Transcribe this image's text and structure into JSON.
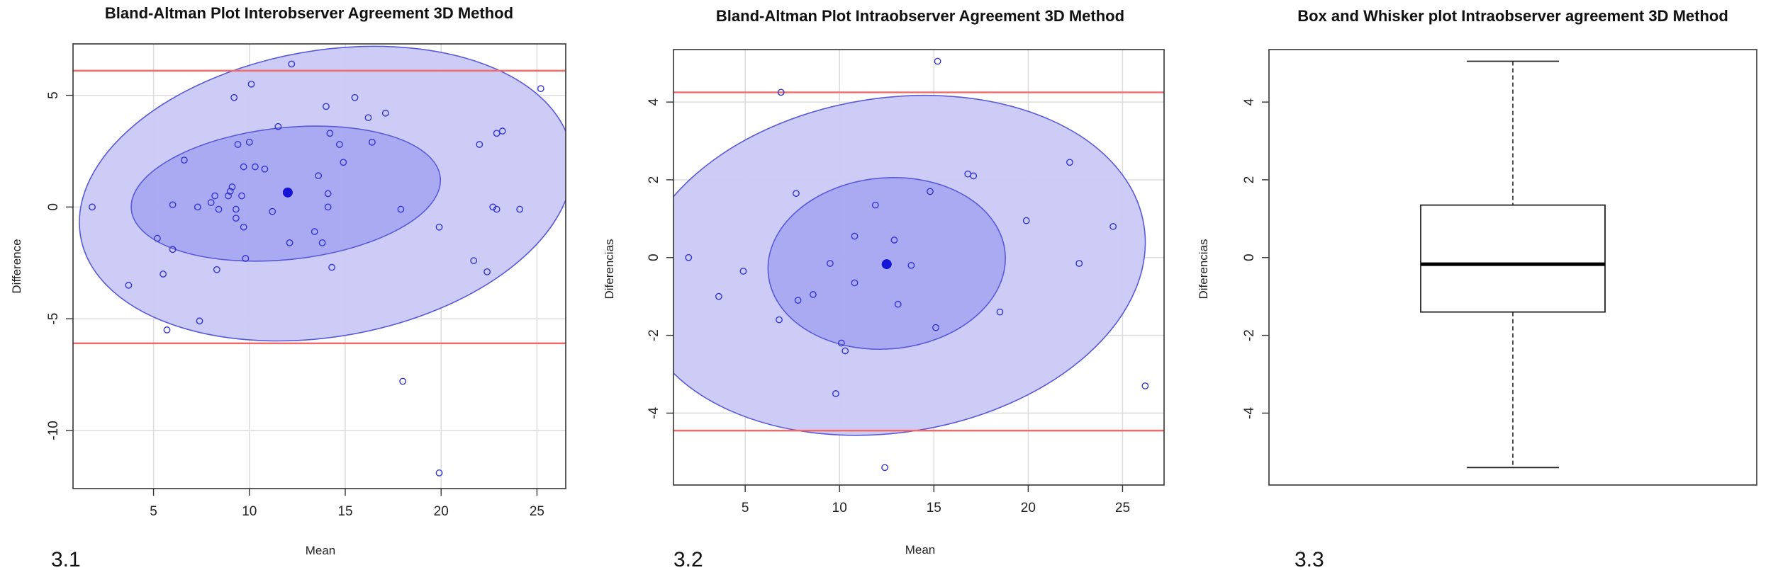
{
  "colors": {
    "ellipse_outer": "#c9c9f7",
    "ellipse_inner": "#a3a3f2",
    "ellipse_stroke": "#5a5ad8",
    "points": "#3535d0",
    "limit_lines": "#f06a6a",
    "grid": "#dcdcdc"
  },
  "chart_data": [
    {
      "type": "scatter",
      "panel_label": "3.1",
      "title": "Bland-Altman Plot Interobserver Agreement 3D Method",
      "xlabel": "Mean",
      "ylabel": "Difference",
      "xlim": [
        0.8,
        26.5
      ],
      "ylim": [
        -12.6,
        7.3
      ],
      "xticks": [
        5,
        10,
        15,
        20,
        25
      ],
      "yticks": [
        -10,
        -5,
        0,
        5
      ],
      "grid": true,
      "limit_lines": [
        6.1,
        -6.1
      ],
      "mean_point": [
        12.0,
        0.65
      ],
      "ellipses": [
        {
          "cx": 14.0,
          "cy": 0.6,
          "rx": 13.0,
          "ry": 6.4,
          "angle": 10,
          "fill": "outer"
        },
        {
          "cx": 11.9,
          "cy": 0.6,
          "rx": 8.1,
          "ry": 2.95,
          "angle": 6,
          "fill": "inner"
        }
      ],
      "points": [
        [
          1.8,
          0.0
        ],
        [
          3.7,
          -3.5
        ],
        [
          5.2,
          -1.4
        ],
        [
          5.5,
          -3.0
        ],
        [
          5.7,
          -5.5
        ],
        [
          6.0,
          0.1
        ],
        [
          6.0,
          -1.9
        ],
        [
          6.6,
          2.1
        ],
        [
          7.3,
          0.0
        ],
        [
          7.4,
          -5.1
        ],
        [
          8.0,
          0.2
        ],
        [
          8.2,
          0.5
        ],
        [
          8.3,
          -2.8
        ],
        [
          8.4,
          -0.1
        ],
        [
          8.9,
          0.5
        ],
        [
          9.0,
          0.7
        ],
        [
          9.1,
          0.9
        ],
        [
          9.2,
          4.9
        ],
        [
          9.3,
          -0.1
        ],
        [
          9.3,
          -0.5
        ],
        [
          9.4,
          2.8
        ],
        [
          9.6,
          0.5
        ],
        [
          9.7,
          1.8
        ],
        [
          9.7,
          -0.9
        ],
        [
          9.8,
          -2.3
        ],
        [
          10.0,
          2.9
        ],
        [
          10.1,
          5.5
        ],
        [
          10.3,
          1.8
        ],
        [
          10.8,
          1.7
        ],
        [
          11.2,
          -0.2
        ],
        [
          11.5,
          3.6
        ],
        [
          12.1,
          -1.6
        ],
        [
          12.2,
          6.4
        ],
        [
          13.4,
          -1.1
        ],
        [
          13.6,
          1.4
        ],
        [
          13.8,
          -1.6
        ],
        [
          14.0,
          4.5
        ],
        [
          14.1,
          0.0
        ],
        [
          14.1,
          0.6
        ],
        [
          14.2,
          3.3
        ],
        [
          14.3,
          -2.7
        ],
        [
          14.7,
          2.8
        ],
        [
          14.9,
          2.0
        ],
        [
          15.5,
          4.9
        ],
        [
          16.2,
          4.0
        ],
        [
          16.4,
          2.9
        ],
        [
          17.1,
          4.2
        ],
        [
          17.9,
          -0.1
        ],
        [
          18.0,
          -7.8
        ],
        [
          19.9,
          -0.9
        ],
        [
          19.9,
          -11.9
        ],
        [
          21.7,
          -2.4
        ],
        [
          22.0,
          2.8
        ],
        [
          22.4,
          -2.9
        ],
        [
          22.7,
          0.0
        ],
        [
          22.9,
          3.3
        ],
        [
          22.9,
          -0.1
        ],
        [
          23.2,
          3.4
        ],
        [
          24.1,
          -0.1
        ],
        [
          25.2,
          5.3
        ]
      ]
    },
    {
      "type": "scatter",
      "panel_label": "3.2",
      "title": "Bland-Altman Plot Intraobserver Agreement 3D Method",
      "xlabel": "Mean",
      "ylabel": "Diferencias",
      "xlim": [
        1.2,
        27.2
      ],
      "ylim": [
        -5.85,
        5.35
      ],
      "xticks": [
        5,
        10,
        15,
        20,
        25
      ],
      "yticks": [
        -4,
        -2,
        0,
        2,
        4
      ],
      "grid": true,
      "limit_lines": [
        4.25,
        -4.45
      ],
      "mean_point": [
        12.5,
        -0.17
      ],
      "ellipses": [
        {
          "cx": 12.7,
          "cy": -0.2,
          "rx": 13.6,
          "ry": 4.3,
          "angle": 9,
          "fill": "outer"
        },
        {
          "cx": 12.5,
          "cy": -0.15,
          "rx": 6.3,
          "ry": 2.2,
          "angle": 5,
          "fill": "inner"
        }
      ],
      "points": [
        [
          2.0,
          0.0
        ],
        [
          3.6,
          -1.0
        ],
        [
          4.9,
          -0.35
        ],
        [
          6.8,
          -1.6
        ],
        [
          6.9,
          4.25
        ],
        [
          7.7,
          1.65
        ],
        [
          7.8,
          -1.1
        ],
        [
          8.6,
          -0.95
        ],
        [
          9.5,
          -0.15
        ],
        [
          9.8,
          -3.5
        ],
        [
          10.1,
          -2.2
        ],
        [
          10.3,
          -2.4
        ],
        [
          10.8,
          0.55
        ],
        [
          10.8,
          -0.65
        ],
        [
          11.9,
          1.35
        ],
        [
          12.9,
          0.45
        ],
        [
          13.1,
          -1.2
        ],
        [
          13.8,
          -0.2
        ],
        [
          14.8,
          1.7
        ],
        [
          15.1,
          -1.8
        ],
        [
          15.2,
          5.05
        ],
        [
          16.8,
          2.15
        ],
        [
          17.1,
          2.1
        ],
        [
          18.5,
          -1.4
        ],
        [
          19.9,
          0.95
        ],
        [
          22.2,
          2.45
        ],
        [
          22.7,
          -0.15
        ],
        [
          24.5,
          0.8
        ],
        [
          26.2,
          -3.3
        ],
        [
          12.4,
          -5.4
        ]
      ]
    },
    {
      "type": "box",
      "panel_label": "3.3",
      "title": "Box and Whisker plot Intraobserver agreement 3D Method",
      "xlabel": "",
      "ylabel": "Diferencias",
      "ylim": [
        -5.85,
        5.35
      ],
      "yticks": [
        -4,
        -2,
        0,
        2,
        4
      ],
      "grid": false,
      "box": {
        "min": -5.4,
        "q1": -1.4,
        "median": -0.17,
        "q3": 1.35,
        "max": 5.05
      }
    }
  ]
}
